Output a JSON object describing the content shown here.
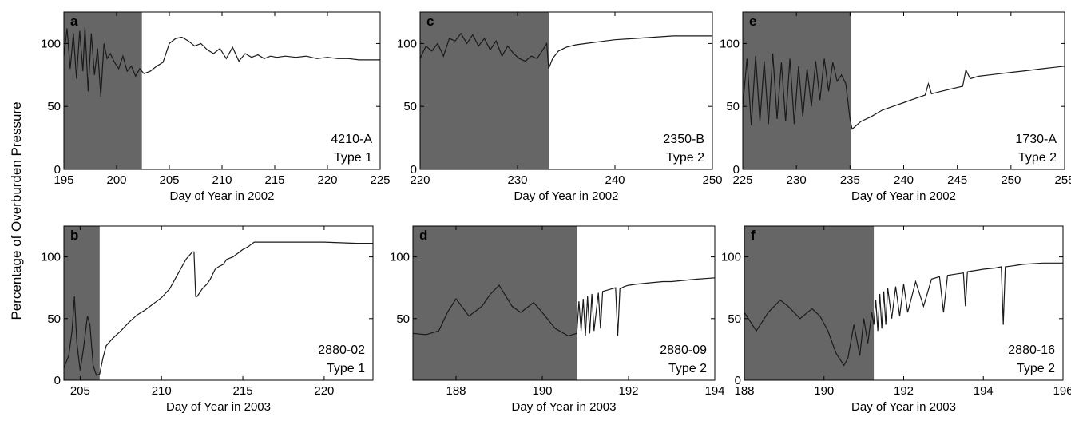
{
  "figure": {
    "ylabel": "Percentage of Overburden Pressure"
  },
  "chart_data": [
    {
      "type": "line",
      "panel": "a",
      "station": "4210-A",
      "type_label": "Type 1",
      "xlabel": "Day of Year in 2002",
      "xlim": [
        195,
        225
      ],
      "ylim": [
        0,
        125
      ],
      "xticks": [
        195,
        200,
        205,
        210,
        215,
        220,
        225
      ],
      "yticks": [
        0,
        50,
        100
      ],
      "shaded_range": [
        195,
        202.4
      ],
      "series": [
        {
          "x": [
            195,
            195.3,
            195.6,
            195.9,
            196.2,
            196.5,
            196.8,
            197.0,
            197.3,
            197.6,
            197.9,
            198.2,
            198.5,
            198.8,
            199.1,
            199.4,
            199.8,
            200.2,
            200.6,
            201.0,
            201.4,
            201.8,
            202.2,
            202.6,
            203.2,
            203.8,
            204.4,
            205.0,
            205.6,
            206.2,
            206.8,
            207.4,
            208.0,
            208.6,
            209.2,
            209.8,
            210.4,
            211.0,
            211.6,
            212.2,
            212.8,
            213.4,
            214.0,
            214.6,
            215.2,
            216.0,
            217.0,
            218.0,
            219.0,
            220.0,
            221.0,
            222.0,
            223.0,
            224.0,
            225.0
          ],
          "y": [
            90,
            112,
            80,
            108,
            72,
            110,
            78,
            113,
            62,
            108,
            75,
            96,
            58,
            100,
            88,
            92,
            85,
            80,
            90,
            78,
            82,
            74,
            80,
            76,
            78,
            82,
            85,
            100,
            104,
            105,
            102,
            98,
            100,
            95,
            92,
            96,
            88,
            97,
            86,
            92,
            89,
            91,
            88,
            90,
            89,
            90,
            89,
            90,
            88,
            89,
            88,
            88,
            87,
            87,
            87
          ]
        }
      ]
    },
    {
      "type": "line",
      "panel": "c",
      "station": "2350-B",
      "type_label": "Type 2",
      "xlabel": "Day of Year in 2002",
      "xlim": [
        220,
        250
      ],
      "ylim": [
        0,
        125
      ],
      "xticks": [
        220,
        230,
        240,
        250
      ],
      "yticks": [
        0,
        50,
        100
      ],
      "shaded_range": [
        220,
        233.2
      ],
      "series": [
        {
          "x": [
            220,
            220.6,
            221.2,
            221.8,
            222.4,
            223.0,
            223.6,
            224.2,
            224.8,
            225.4,
            226.0,
            226.6,
            227.2,
            227.8,
            228.4,
            229.0,
            229.6,
            230.2,
            230.8,
            231.4,
            232.0,
            232.6,
            233.0,
            233.2,
            233.6,
            234.2,
            235.0,
            236.0,
            237.0,
            238.0,
            239.0,
            240.0,
            242.0,
            244.0,
            246.0,
            248.0,
            250.0
          ],
          "y": [
            88,
            98,
            94,
            100,
            90,
            104,
            102,
            108,
            100,
            107,
            98,
            104,
            95,
            102,
            90,
            98,
            92,
            88,
            86,
            90,
            88,
            95,
            100,
            80,
            88,
            94,
            97,
            99,
            100,
            101,
            102,
            103,
            104,
            105,
            106,
            106,
            106
          ]
        }
      ]
    },
    {
      "type": "line",
      "panel": "e",
      "station": "1730-A",
      "type_label": "Type 2",
      "xlabel": "Day of Year in 2002",
      "xlim": [
        225,
        255
      ],
      "ylim": [
        0,
        125
      ],
      "xticks": [
        225,
        230,
        235,
        240,
        245,
        250,
        255
      ],
      "yticks": [
        0,
        50,
        100
      ],
      "shaded_range": [
        225,
        235.1
      ],
      "series": [
        {
          "x": [
            225,
            225.4,
            225.8,
            226.2,
            226.6,
            227.0,
            227.4,
            227.8,
            228.2,
            228.6,
            229.0,
            229.4,
            229.8,
            230.2,
            230.6,
            231.0,
            231.4,
            231.8,
            232.2,
            232.6,
            233.0,
            233.4,
            233.8,
            234.2,
            234.6,
            235.0,
            235.2,
            236.0,
            237.0,
            238.0,
            239.0,
            240.0,
            241.0,
            242.0,
            242.3,
            242.6,
            243.5,
            244.5,
            245.5,
            245.8,
            246.2,
            247.0,
            248.0,
            249.0,
            250.0,
            251.0,
            252.0,
            253.0,
            254.0,
            255.0
          ],
          "y": [
            50,
            88,
            35,
            90,
            38,
            86,
            36,
            92,
            40,
            85,
            38,
            88,
            36,
            82,
            42,
            80,
            50,
            86,
            55,
            88,
            62,
            85,
            70,
            75,
            68,
            40,
            32,
            38,
            42,
            47,
            50,
            53,
            56,
            59,
            68,
            60,
            62,
            64,
            66,
            79,
            72,
            74,
            75,
            76,
            77,
            78,
            79,
            80,
            81,
            82
          ]
        }
      ]
    },
    {
      "type": "line",
      "panel": "b",
      "station": "2880-02",
      "type_label": "Type 1",
      "xlabel": "Day of Year in 2003",
      "xlim": [
        204,
        223
      ],
      "ylim": [
        0,
        125
      ],
      "xticks": [
        205,
        210,
        215,
        220
      ],
      "yticks": [
        0,
        50,
        100
      ],
      "shaded_range": [
        204,
        206.2
      ],
      "series": [
        {
          "x": [
            204.0,
            204.3,
            204.5,
            204.65,
            204.8,
            205.0,
            205.2,
            205.45,
            205.6,
            205.8,
            206.0,
            206.2,
            206.4,
            206.6,
            207.0,
            207.5,
            208.0,
            208.5,
            209.0,
            209.5,
            210.0,
            210.5,
            211.0,
            211.5,
            211.9,
            212.0,
            212.1,
            212.2,
            212.5,
            212.8,
            213.0,
            213.3,
            213.5,
            213.8,
            214.0,
            214.4,
            214.7,
            215.0,
            215.3,
            215.5,
            215.7,
            216.0,
            218.0,
            220.0,
            222.0,
            223.0
          ],
          "y": [
            10,
            20,
            40,
            68,
            30,
            8,
            25,
            52,
            45,
            12,
            4,
            5,
            18,
            28,
            34,
            40,
            47,
            53,
            57,
            62,
            67,
            74,
            86,
            98,
            104,
            104,
            68,
            68,
            74,
            78,
            82,
            90,
            92,
            94,
            98,
            100,
            103,
            106,
            108,
            110,
            112,
            112,
            112,
            112,
            111,
            111
          ]
        }
      ]
    },
    {
      "type": "line",
      "panel": "d",
      "station": "2880-09",
      "type_label": "Type 2",
      "xlabel": "Day of Year in 2003",
      "xlim": [
        187,
        194
      ],
      "ylim": [
        0,
        125
      ],
      "xticks": [
        188,
        190,
        192,
        194
      ],
      "yticks": [
        50,
        100
      ],
      "shaded_range": [
        187,
        190.8
      ],
      "series": [
        {
          "x": [
            187.0,
            187.3,
            187.6,
            187.8,
            188.0,
            188.3,
            188.6,
            188.8,
            189.0,
            189.3,
            189.5,
            189.8,
            190.0,
            190.3,
            190.6,
            190.8,
            190.85,
            190.9,
            190.95,
            191.0,
            191.05,
            191.1,
            191.15,
            191.2,
            191.3,
            191.35,
            191.4,
            191.5,
            191.6,
            191.7,
            191.75,
            191.8,
            191.9,
            192.0,
            192.2,
            192.5,
            192.8,
            193.0,
            193.3,
            193.6,
            194.0
          ],
          "y": [
            38,
            37,
            40,
            55,
            66,
            52,
            60,
            70,
            77,
            60,
            55,
            63,
            55,
            42,
            36,
            38,
            64,
            40,
            66,
            36,
            68,
            38,
            70,
            40,
            71,
            42,
            72,
            73,
            74,
            75,
            36,
            74,
            76,
            77,
            78,
            79,
            80,
            80,
            81,
            82,
            83
          ]
        }
      ]
    },
    {
      "type": "line",
      "panel": "f",
      "station": "2880-16",
      "type_label": "Type 2",
      "xlabel": "Day of Year in 2003",
      "xlim": [
        188,
        196
      ],
      "ylim": [
        0,
        125
      ],
      "xticks": [
        188,
        190,
        192,
        194,
        196
      ],
      "yticks": [
        0,
        50,
        100
      ],
      "shaded_range": [
        188,
        191.25
      ],
      "series": [
        {
          "x": [
            188.0,
            188.3,
            188.6,
            188.9,
            189.1,
            189.4,
            189.7,
            189.9,
            190.1,
            190.3,
            190.5,
            190.6,
            190.75,
            190.9,
            191.0,
            191.1,
            191.2,
            191.25,
            191.3,
            191.35,
            191.4,
            191.45,
            191.5,
            191.55,
            191.6,
            191.7,
            191.8,
            191.9,
            192.0,
            192.1,
            192.3,
            192.5,
            192.7,
            192.9,
            193.0,
            193.1,
            193.3,
            193.5,
            193.55,
            193.6,
            193.8,
            194.0,
            194.3,
            194.45,
            194.5,
            194.55,
            194.8,
            195.0,
            195.5,
            196.0
          ],
          "y": [
            55,
            40,
            55,
            65,
            60,
            50,
            58,
            52,
            40,
            22,
            12,
            18,
            45,
            20,
            50,
            30,
            55,
            45,
            65,
            40,
            70,
            42,
            72,
            45,
            75,
            50,
            76,
            52,
            78,
            55,
            80,
            60,
            82,
            84,
            55,
            85,
            86,
            87,
            60,
            88,
            89,
            90,
            91,
            92,
            45,
            92,
            93,
            94,
            95,
            95
          ]
        }
      ]
    }
  ]
}
